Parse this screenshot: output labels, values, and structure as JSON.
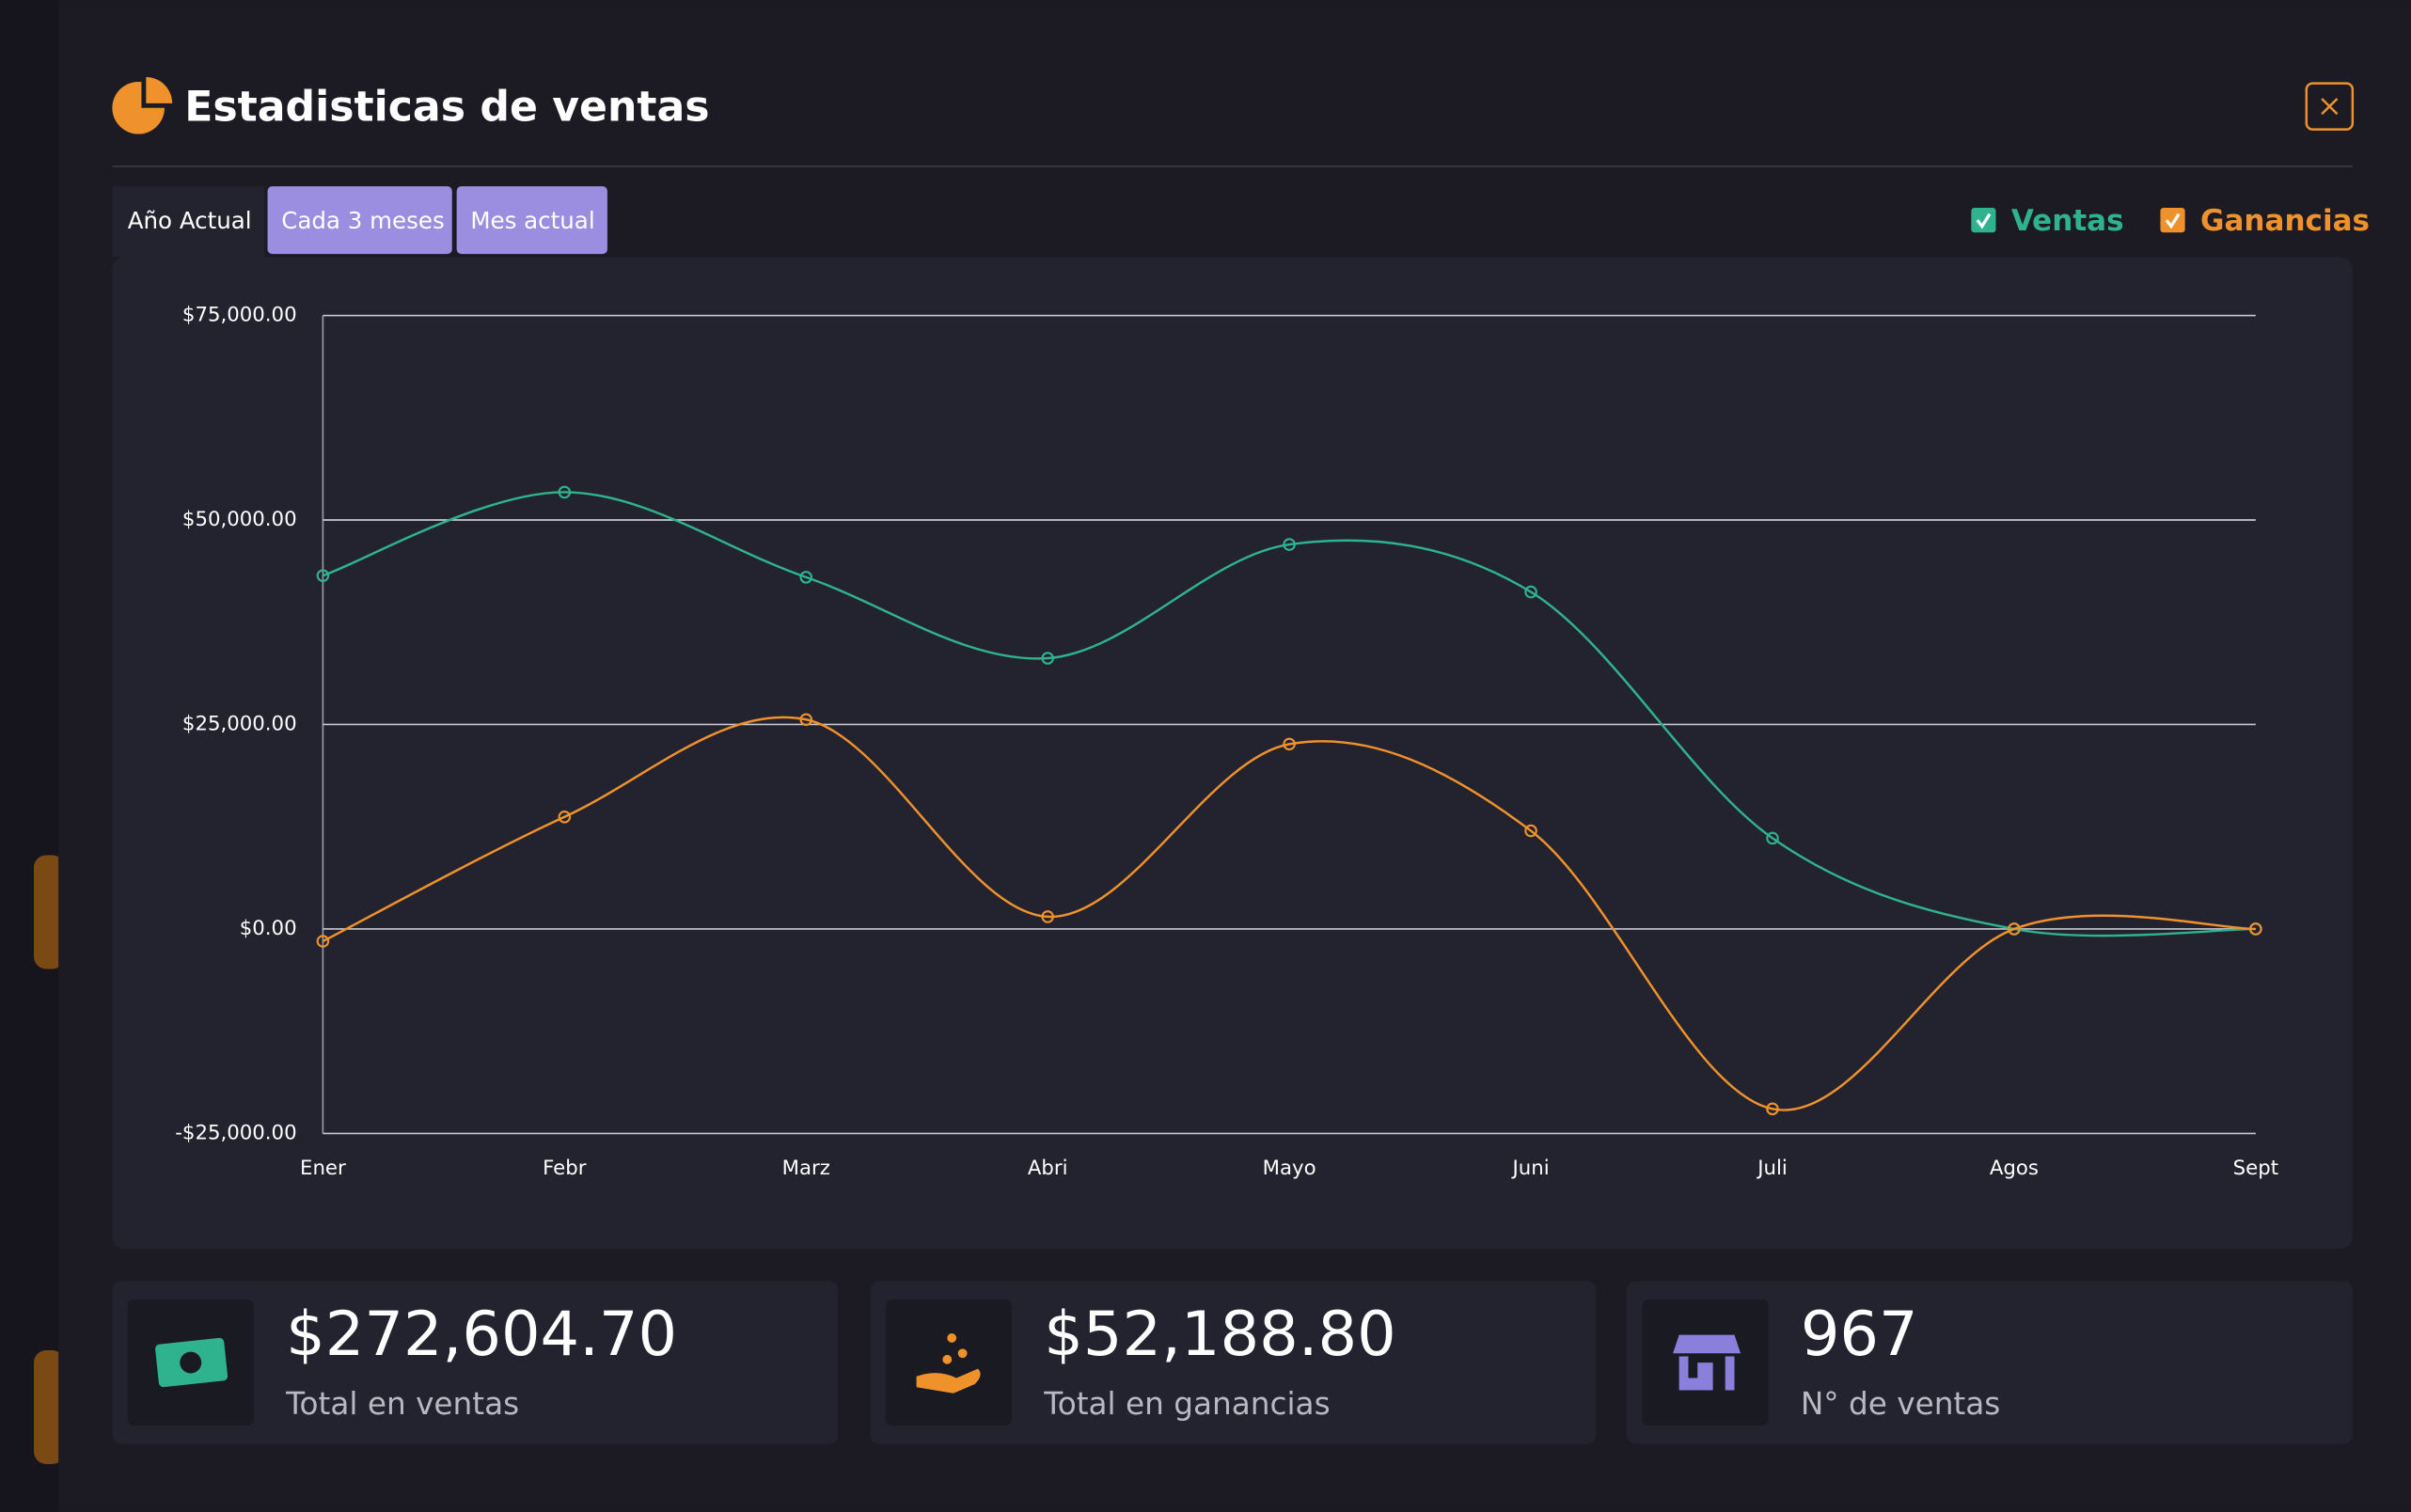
{
  "header": {
    "title": "Estadisticas de ventas"
  },
  "tabs": [
    "Año Actual",
    "Cada 3 meses",
    "Mes actual"
  ],
  "chart_data": {
    "type": "line",
    "categories": [
      "Ener",
      "Febr",
      "Marz",
      "Abri",
      "Mayo",
      "Juni",
      "Juli",
      "Agos",
      "Sept"
    ],
    "series": [
      {
        "name": "Ventas",
        "color": "#2fb38e",
        "values": [
          43200,
          53400,
          43000,
          33100,
          47000,
          41200,
          11100,
          0,
          0
        ]
      },
      {
        "name": "Ganancias",
        "color": "#f0922b",
        "values": [
          -1500,
          13700,
          25600,
          1500,
          22600,
          12000,
          -22000,
          0,
          0
        ]
      }
    ],
    "ylim": [
      -25000,
      75000
    ],
    "yticks": [
      {
        "value": -25000,
        "label": "-$25,000.00"
      },
      {
        "value": 0,
        "label": "$0.00"
      },
      {
        "value": 25000,
        "label": "$25,000.00"
      },
      {
        "value": 50000,
        "label": "$50,000.00"
      },
      {
        "value": 75000,
        "label": "$75,000.00"
      }
    ],
    "grid": true,
    "smooth": true
  },
  "stats": [
    {
      "value": "$272,604.70",
      "label": "Total en ventas"
    },
    {
      "value": "$52,188.80",
      "label": "Total en ganancias"
    },
    {
      "value": "967",
      "label": "N° de ventas"
    }
  ]
}
